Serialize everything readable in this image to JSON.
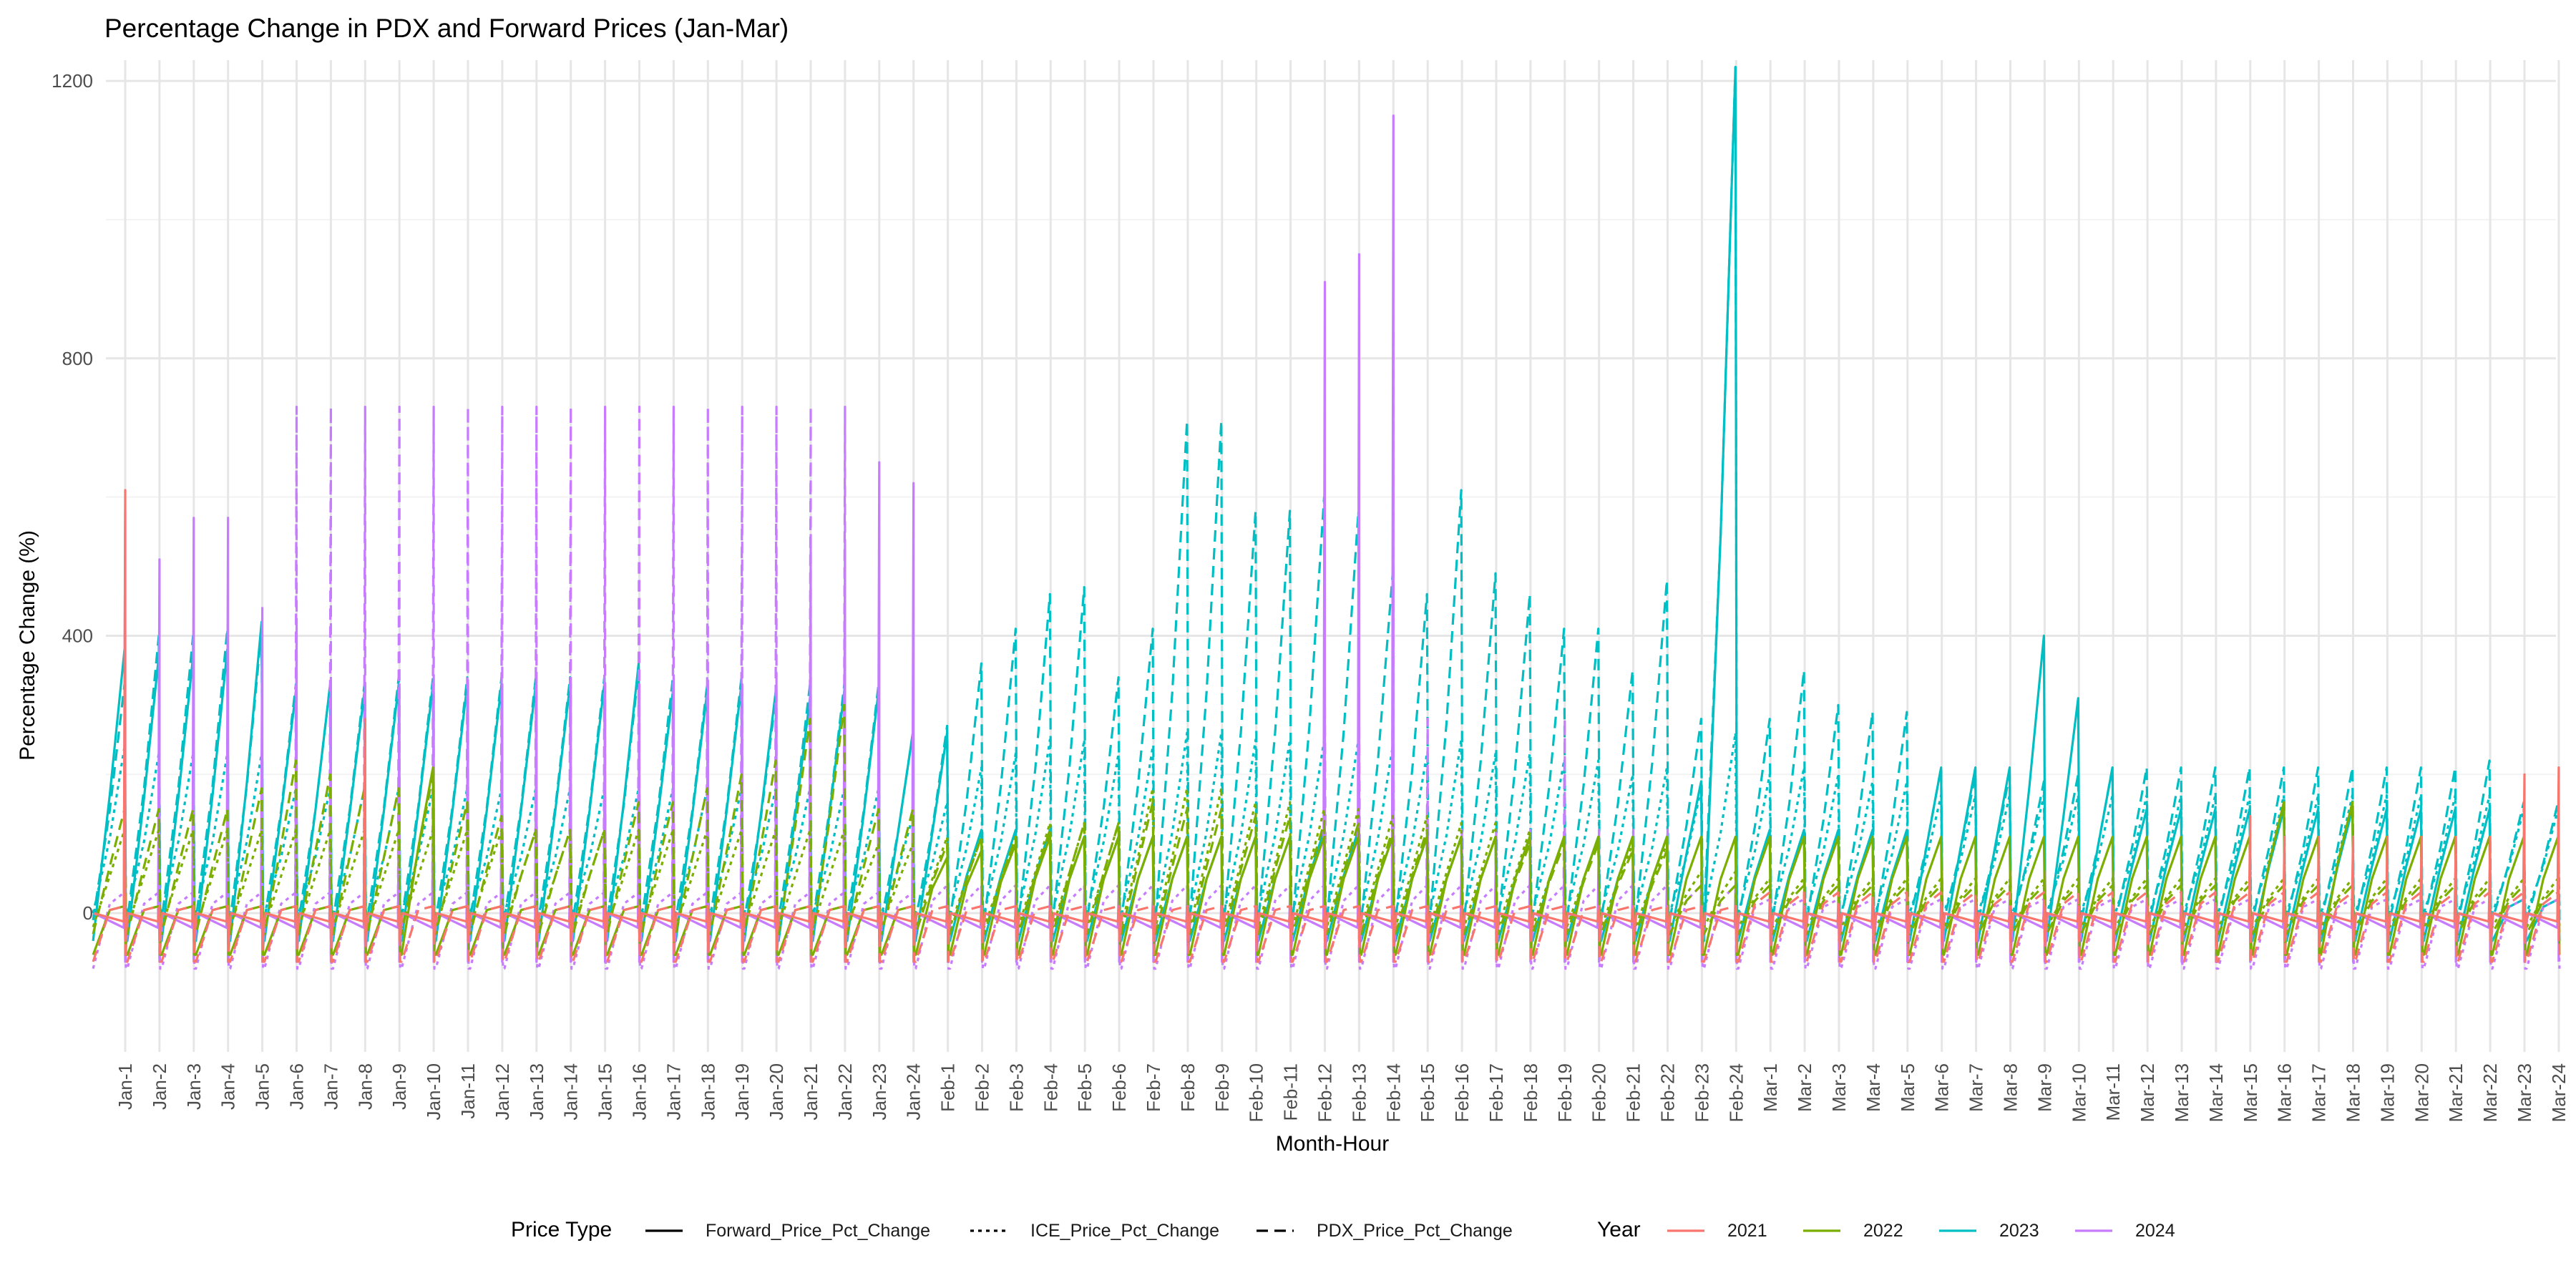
{
  "chart_data": {
    "type": "line",
    "title": "Percentage Change in PDX and Forward Prices (Jan-Mar)",
    "xlabel": "Month-Hour",
    "ylabel": "Percentage Change (%)",
    "ylim": [
      -200,
      1230
    ],
    "yticks": [
      0,
      400,
      800,
      1200
    ],
    "grid": true,
    "legend_position": "bottom",
    "categories": [
      "Jan-1",
      "Jan-2",
      "Jan-3",
      "Jan-4",
      "Jan-5",
      "Jan-6",
      "Jan-7",
      "Jan-8",
      "Jan-9",
      "Jan-10",
      "Jan-11",
      "Jan-12",
      "Jan-13",
      "Jan-14",
      "Jan-15",
      "Jan-16",
      "Jan-17",
      "Jan-18",
      "Jan-19",
      "Jan-20",
      "Jan-21",
      "Jan-22",
      "Jan-23",
      "Jan-24",
      "Feb-1",
      "Feb-2",
      "Feb-3",
      "Feb-4",
      "Feb-5",
      "Feb-6",
      "Feb-7",
      "Feb-8",
      "Feb-9",
      "Feb-10",
      "Feb-11",
      "Feb-12",
      "Feb-13",
      "Feb-14",
      "Feb-15",
      "Feb-16",
      "Feb-17",
      "Feb-18",
      "Feb-19",
      "Feb-20",
      "Feb-21",
      "Feb-22",
      "Feb-23",
      "Feb-24",
      "Mar-1",
      "Mar-2",
      "Mar-3",
      "Mar-4",
      "Mar-5",
      "Mar-6",
      "Mar-7",
      "Mar-8",
      "Mar-9",
      "Mar-10",
      "Mar-11",
      "Mar-12",
      "Mar-13",
      "Mar-14",
      "Mar-15",
      "Mar-16",
      "Mar-17",
      "Mar-18",
      "Mar-19",
      "Mar-20",
      "Mar-21",
      "Mar-22",
      "Mar-23",
      "Mar-24"
    ],
    "linetype_legend": {
      "title": "Price Type",
      "items": [
        {
          "label": "Forward_Price_Pct_Change",
          "dash": ""
        },
        {
          "label": "ICE_Price_Pct_Change",
          "dash": "5,6"
        },
        {
          "label": "PDX_Price_Pct_Change",
          "dash": "16,9"
        }
      ]
    },
    "color_legend": {
      "title": "Year",
      "items": [
        {
          "label": "2021",
          "color": "#F8766D"
        },
        {
          "label": "2022",
          "color": "#7CAE00"
        },
        {
          "label": "2023",
          "color": "#00BFC4"
        },
        {
          "label": "2024",
          "color": "#C77CFF"
        }
      ]
    },
    "series_style": {
      "Forward_Price_Pct_Change": {
        "dash": "",
        "width": 3.2
      },
      "ICE_Price_Pct_Change": {
        "dash": "5,6",
        "width": 3.2
      },
      "PDX_Price_Pct_Change": {
        "dash": "16,9",
        "width": 3.2
      }
    },
    "series": [
      {
        "year": "2023",
        "type": "PDX_Price_Pct_Change",
        "peaks": [
          330,
          400,
          400,
          410,
          410,
          330,
          330,
          330,
          340,
          340,
          340,
          340,
          340,
          340,
          340,
          350,
          340,
          330,
          340,
          310,
          330,
          330,
          330,
          260,
          270,
          360,
          410,
          460,
          470,
          340,
          410,
          710,
          710,
          580,
          580,
          600,
          580,
          490,
          460,
          610,
          490,
          460,
          410,
          410,
          350,
          480,
          280,
          1220,
          280,
          350,
          300,
          290,
          290,
          210,
          200,
          200,
          190,
          200,
          210,
          210,
          210,
          210,
          210,
          210,
          210,
          210,
          210,
          210,
          210,
          220,
          160,
          160
        ],
        "trough": -10,
        "shape": "ramp"
      },
      {
        "year": "2023",
        "type": "ICE_Price_Pct_Change",
        "peaks": [
          240,
          230,
          230,
          230,
          230,
          180,
          180,
          180,
          180,
          180,
          180,
          180,
          180,
          180,
          180,
          180,
          180,
          180,
          180,
          180,
          180,
          180,
          180,
          140,
          160,
          210,
          230,
          250,
          250,
          230,
          240,
          260,
          260,
          250,
          250,
          250,
          250,
          240,
          230,
          250,
          230,
          230,
          220,
          220,
          200,
          210,
          180,
          260,
          200,
          210,
          200,
          190,
          190,
          170,
          170,
          170,
          170,
          170,
          170,
          170,
          170,
          170,
          170,
          170,
          170,
          170,
          170,
          170,
          170,
          170,
          150,
          150
        ],
        "trough": 0,
        "shape": "ramp"
      },
      {
        "year": "2023",
        "type": "Forward_Price_Pct_Change",
        "peaks": [
          380,
          370,
          370,
          380,
          420,
          320,
          330,
          320,
          330,
          330,
          330,
          330,
          330,
          330,
          330,
          360,
          320,
          320,
          330,
          320,
          310,
          320,
          320,
          260,
          260,
          120,
          120,
          120,
          110,
          110,
          110,
          110,
          110,
          110,
          110,
          120,
          120,
          110,
          110,
          110,
          110,
          110,
          110,
          110,
          110,
          110,
          190,
          1220,
          120,
          120,
          120,
          120,
          120,
          210,
          210,
          210,
          400,
          310,
          210,
          150,
          150,
          150,
          150,
          150,
          150,
          150,
          150,
          150,
          150,
          150,
          20,
          20
        ],
        "trough": -40,
        "shape": "ramp"
      },
      {
        "year": "2024",
        "type": "Forward_Price_Pct_Change",
        "peaks": [
          580,
          510,
          570,
          570,
          440,
          410,
          330,
          330,
          330,
          330,
          330,
          330,
          330,
          330,
          330,
          330,
          330,
          330,
          330,
          330,
          530,
          530,
          650,
          620,
          60,
          60,
          60,
          60,
          60,
          60,
          60,
          60,
          60,
          60,
          60,
          910,
          950,
          1150,
          120,
          120,
          120,
          120,
          120,
          120,
          120,
          120,
          90,
          90,
          60,
          60,
          60,
          60,
          60,
          60,
          60,
          60,
          60,
          60,
          60,
          60,
          60,
          60,
          60,
          60,
          60,
          60,
          60,
          60,
          60,
          60,
          60,
          60
        ],
        "trough": -70,
        "shape": "spike"
      },
      {
        "year": "2024",
        "type": "PDX_Price_Pct_Change",
        "peaks": [
          20,
          10,
          10,
          10,
          10,
          730,
          730,
          730,
          730,
          730,
          730,
          730,
          730,
          730,
          730,
          730,
          730,
          730,
          730,
          730,
          730,
          730,
          10,
          10,
          10,
          10,
          10,
          10,
          10,
          10,
          10,
          10,
          10,
          10,
          10,
          10,
          10,
          840,
          280,
          10,
          10,
          10,
          280,
          10,
          10,
          10,
          10,
          10,
          0,
          0,
          0,
          0,
          0,
          0,
          0,
          0,
          0,
          0,
          0,
          0,
          0,
          0,
          0,
          0,
          0,
          0,
          0,
          0,
          0,
          0,
          0,
          0
        ],
        "trough": -70,
        "shape": "spike"
      },
      {
        "year": "2024",
        "type": "ICE_Price_Pct_Change",
        "peaks": [
          30,
          30,
          30,
          30,
          30,
          30,
          30,
          30,
          30,
          30,
          30,
          30,
          30,
          30,
          30,
          30,
          30,
          30,
          30,
          30,
          30,
          30,
          30,
          30,
          40,
          40,
          40,
          40,
          40,
          40,
          40,
          40,
          40,
          40,
          40,
          40,
          40,
          40,
          40,
          40,
          40,
          40,
          40,
          40,
          40,
          40,
          40,
          40,
          20,
          20,
          20,
          20,
          20,
          20,
          20,
          20,
          20,
          20,
          20,
          20,
          20,
          20,
          20,
          20,
          20,
          20,
          20,
          20,
          20,
          20,
          20,
          20
        ],
        "trough": -80,
        "shape": "ramp"
      },
      {
        "year": "2022",
        "type": "PDX_Price_Pct_Change",
        "peaks": [
          150,
          150,
          150,
          150,
          180,
          220,
          200,
          180,
          180,
          200,
          160,
          140,
          120,
          120,
          120,
          160,
          160,
          180,
          200,
          220,
          280,
          300,
          150,
          150,
          100,
          110,
          110,
          120,
          130,
          130,
          160,
          150,
          150,
          140,
          140,
          130,
          130,
          120,
          120,
          110,
          110,
          100,
          100,
          100,
          90,
          90,
          40,
          40,
          40,
          40,
          40,
          40,
          40,
          40,
          40,
          40,
          40,
          40,
          40,
          40,
          40,
          40,
          40,
          40,
          40,
          40,
          40,
          40,
          40,
          40,
          40,
          40
        ],
        "trough": -30,
        "shape": "ramp"
      },
      {
        "year": "2022",
        "type": "ICE_Price_Pct_Change",
        "peaks": [
          120,
          120,
          120,
          120,
          120,
          120,
          120,
          120,
          120,
          120,
          120,
          120,
          120,
          120,
          120,
          120,
          120,
          120,
          120,
          120,
          120,
          120,
          100,
          100,
          110,
          110,
          110,
          130,
          130,
          130,
          180,
          180,
          180,
          160,
          160,
          150,
          150,
          140,
          140,
          130,
          130,
          120,
          110,
          110,
          100,
          100,
          60,
          60,
          50,
          50,
          50,
          50,
          50,
          50,
          50,
          50,
          50,
          50,
          50,
          50,
          50,
          50,
          50,
          50,
          50,
          50,
          50,
          50,
          50,
          50,
          50,
          50
        ],
        "trough": -20,
        "shape": "ramp"
      },
      {
        "year": "2022",
        "type": "Forward_Price_Pct_Change",
        "peaks": [
          10,
          10,
          10,
          10,
          10,
          10,
          10,
          10,
          10,
          210,
          10,
          10,
          10,
          10,
          10,
          10,
          10,
          10,
          10,
          10,
          10,
          10,
          10,
          10,
          80,
          90,
          100,
          110,
          110,
          110,
          110,
          110,
          110,
          110,
          110,
          110,
          110,
          110,
          110,
          110,
          110,
          110,
          110,
          110,
          110,
          110,
          110,
          110,
          110,
          110,
          110,
          110,
          110,
          110,
          110,
          110,
          110,
          110,
          110,
          110,
          110,
          110,
          110,
          160,
          110,
          160,
          110,
          110,
          110,
          110,
          110,
          110
        ],
        "trough": -60,
        "shape": "ramp"
      },
      {
        "year": "2021",
        "type": "Forward_Price_Pct_Change",
        "peaks": [
          610,
          10,
          10,
          10,
          10,
          10,
          10,
          280,
          10,
          10,
          10,
          10,
          10,
          10,
          10,
          10,
          10,
          10,
          10,
          10,
          10,
          10,
          10,
          10,
          10,
          10,
          10,
          10,
          10,
          10,
          10,
          10,
          10,
          10,
          10,
          10,
          10,
          10,
          10,
          10,
          10,
          10,
          10,
          10,
          10,
          10,
          10,
          10,
          10,
          10,
          10,
          10,
          10,
          10,
          10,
          10,
          10,
          10,
          10,
          10,
          10,
          10,
          140,
          110,
          110,
          110,
          110,
          110,
          110,
          110,
          200,
          210
        ],
        "trough": -40,
        "shape": "spike"
      },
      {
        "year": "2021",
        "type": "PDX_Price_Pct_Change",
        "peaks": [
          10,
          10,
          10,
          10,
          10,
          10,
          10,
          10,
          10,
          10,
          10,
          10,
          10,
          10,
          10,
          10,
          10,
          10,
          10,
          10,
          10,
          10,
          10,
          10,
          10,
          10,
          10,
          10,
          10,
          10,
          10,
          10,
          10,
          10,
          10,
          10,
          10,
          10,
          10,
          10,
          10,
          10,
          10,
          10,
          10,
          10,
          10,
          10,
          30,
          30,
          30,
          30,
          30,
          30,
          30,
          30,
          30,
          30,
          30,
          30,
          30,
          30,
          30,
          30,
          30,
          30,
          30,
          30,
          30,
          30,
          30,
          30
        ],
        "trough": -70,
        "shape": "ramp"
      }
    ]
  }
}
